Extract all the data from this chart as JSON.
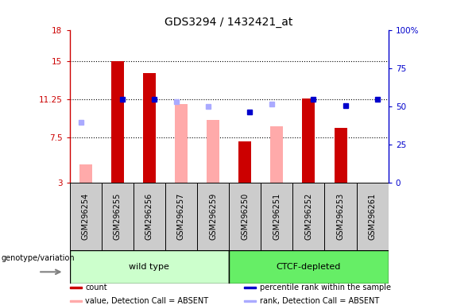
{
  "title": "GDS3294 / 1432421_at",
  "samples": [
    "GSM296254",
    "GSM296255",
    "GSM296256",
    "GSM296257",
    "GSM296259",
    "GSM296250",
    "GSM296251",
    "GSM296252",
    "GSM296253",
    "GSM296261"
  ],
  "count_values": [
    null,
    15.0,
    13.8,
    null,
    null,
    7.1,
    null,
    11.3,
    8.4,
    null
  ],
  "absent_value_values": [
    4.8,
    null,
    null,
    10.8,
    9.2,
    null,
    8.6,
    null,
    null,
    null
  ],
  "absent_rank_values": [
    9.0,
    null,
    null,
    11.0,
    10.5,
    null,
    10.8,
    null,
    null,
    null
  ],
  "percentile_values": [
    null,
    11.25,
    11.25,
    null,
    null,
    10.0,
    null,
    11.25,
    10.6,
    11.25
  ],
  "ylim_left": [
    3,
    18
  ],
  "ylim_right": [
    0,
    100
  ],
  "yticks_left": [
    3,
    7.5,
    11.25,
    15,
    18
  ],
  "ytick_labels_left": [
    "3",
    "7.5",
    "11.25",
    "15",
    "18"
  ],
  "yticks_right": [
    0,
    25,
    50,
    75,
    100
  ],
  "ytick_labels_right": [
    "0",
    "25",
    "50",
    "75",
    "100%"
  ],
  "hlines": [
    7.5,
    11.25,
    15
  ],
  "color_count": "#cc0000",
  "color_percentile": "#0000cc",
  "color_absent_value": "#ffaaaa",
  "color_absent_rank": "#aaaaff",
  "color_wildtype_bg": "#ccffcc",
  "color_ctcf_bg": "#66ee66",
  "color_header_bg": "#cccccc",
  "group_label": "genotype/variation",
  "wt_count": 5,
  "ctcf_count": 5,
  "legend_items": [
    {
      "color": "#cc0000",
      "label": "count",
      "col": 0
    },
    {
      "color": "#0000cc",
      "label": "percentile rank within the sample",
      "col": 1
    },
    {
      "color": "#ffaaaa",
      "label": "value, Detection Call = ABSENT",
      "col": 0
    },
    {
      "color": "#aaaaff",
      "label": "rank, Detection Call = ABSENT",
      "col": 1
    }
  ]
}
